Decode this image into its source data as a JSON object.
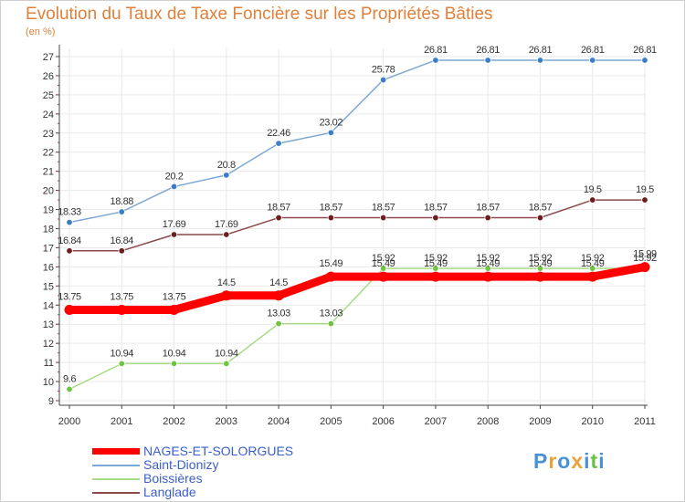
{
  "title": "Evolution du Taux de Taxe Foncière sur les Propriétés Bâties",
  "unit_label": "(en %)",
  "brand": {
    "text": "Proxiti",
    "letters": [
      "P",
      "r",
      "o",
      "x",
      "i",
      "t",
      "i"
    ],
    "colors": [
      "#4a90d9",
      "#e8a33d",
      "#4a90d9",
      "#e8a33d",
      "#4a90d9",
      "#6abf45",
      "#4a90d9"
    ]
  },
  "colors": {
    "axis": "#444444",
    "grid": "#e9e9e9",
    "minor_tick": "#e33a3a",
    "label_text": "#333333"
  },
  "chart_data": {
    "type": "line",
    "title": "Evolution du Taux de Taxe Foncière sur les Propriétés Bâties",
    "ylabel": "(en %)",
    "xlabel": "",
    "x": [
      "2000",
      "2001",
      "2002",
      "2003",
      "2004",
      "2005",
      "2006",
      "2007",
      "2008",
      "2009",
      "2010",
      "2011"
    ],
    "ylim": [
      9,
      27
    ],
    "yticks": [
      9,
      10,
      11,
      12,
      13,
      14,
      15,
      16,
      17,
      18,
      19,
      20,
      21,
      22,
      23,
      24,
      25,
      26,
      27
    ],
    "grid": true,
    "legend_position": "bottom-left",
    "series": [
      {
        "name": "NAGES-ET-SOLORGUES",
        "color": "#ff0000",
        "width": "thick",
        "values": [
          13.75,
          13.75,
          13.75,
          14.5,
          14.5,
          15.49,
          15.49,
          15.49,
          15.49,
          15.49,
          15.49,
          15.99
        ],
        "labels": [
          "13.75",
          "13.75",
          "13.75",
          "14.5",
          "14.5",
          "15.49",
          "15.49",
          "15.49",
          "15.49",
          "15.49",
          "15.49",
          "15.99"
        ]
      },
      {
        "name": "Saint-Dionizy",
        "color": "#7fa8d4",
        "marker_color": "#3a7dc9",
        "width": "thin",
        "values": [
          18.33,
          18.88,
          20.2,
          20.8,
          22.46,
          23.02,
          25.78,
          26.81,
          26.81,
          26.81,
          26.81,
          26.81
        ],
        "labels": [
          "18.33",
          "18.88",
          "20.2",
          "20.8",
          "22.46",
          "23.02",
          "25.78",
          "26.81",
          "26.81",
          "26.81",
          "26.81",
          "26.81"
        ]
      },
      {
        "name": "Boissières",
        "color": "#a8dc86",
        "marker_color": "#6ec43e",
        "width": "thin",
        "values": [
          9.6,
          10.94,
          10.94,
          10.94,
          13.03,
          13.03,
          15.92,
          15.92,
          15.92,
          15.92,
          15.92,
          15.92
        ],
        "labels": [
          "9.6",
          "10.94",
          "10.94",
          "10.94",
          "13.03",
          "13.03",
          "15.92",
          "15.92",
          "15.92",
          "15.92",
          "15.92",
          "15.92"
        ]
      },
      {
        "name": "Langlade",
        "color": "#8a4a4a",
        "marker_color": "#6e1e1e",
        "width": "thin",
        "values": [
          16.84,
          16.84,
          17.69,
          17.69,
          18.57,
          18.57,
          18.57,
          18.57,
          18.57,
          18.57,
          19.5,
          19.5
        ],
        "labels": [
          "16.84",
          "16.84",
          "17.69",
          "17.69",
          "18.57",
          "18.57",
          "18.57",
          "18.57",
          "18.57",
          "18.57",
          "19.5",
          "19.5"
        ]
      }
    ]
  }
}
